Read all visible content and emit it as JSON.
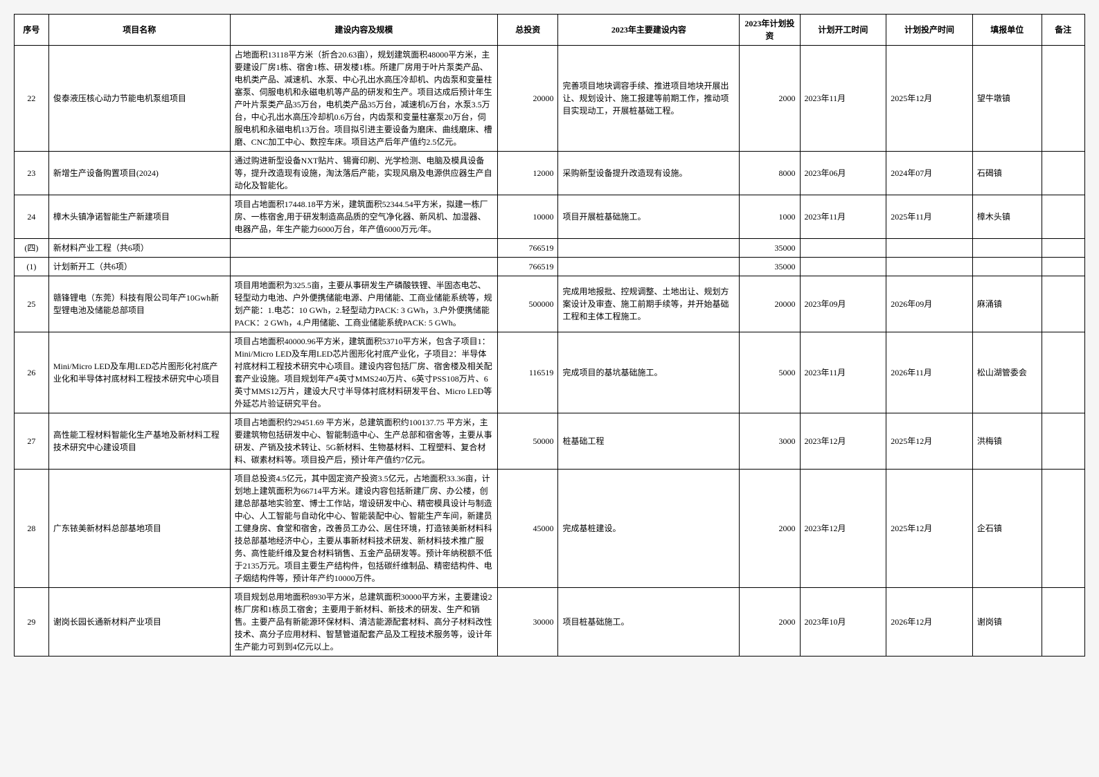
{
  "header": {
    "cols": [
      "序号",
      "项目名称",
      "建设内容及规模",
      "总投资",
      "2023年主要建设内容",
      "2023年计划投资",
      "计划开工时间",
      "计划投产时间",
      "填报单位",
      "备注"
    ]
  },
  "rows": [
    {
      "type": "data",
      "num": "22",
      "name": "俊泰液压核心动力节能电机泵组项目",
      "content": "占地面积13118平方米（折合20.63亩），规划建筑面积48000平方米，主要建设厂房1栋、宿舍1栋、研发楼1栋。所建厂房用于叶片泵类产品、电机类产品、减速机、水泵、中心孔出水高压冷却机、内齿泵和变量柱塞泵、伺服电机和永磁电机等产品的研发和生产。项目达成后预计年生产叶片泵类产品35万台，电机类产品35万台，减速机6万台，水泵3.5万台，中心孔出水高压冷却机0.6万台，内齿泵和变量柱塞泵20万台，伺服电机和永磁电机13万台。项目拟引进主要设备为磨床、曲线磨床、槽磨、CNC加工中心、数控车床。项目达产后年产值约2.5亿元。",
      "invest": "20000",
      "desc2023": "完善项目地块调容手续、推进项目地块开展出让、规划设计、施工报建等前期工作，推动项目实现动工，开展桩基础工程。",
      "plan2023": "2000",
      "start": "2023年11月",
      "end": "2025年12月",
      "unit": "望牛墩镇",
      "note": ""
    },
    {
      "type": "data",
      "num": "23",
      "name": "新增生产设备购置项目(2024)",
      "content": "通过购进新型设备NXT贴片、锡膏印刷、光学检测、电脑及模具设备等，提升改造现有设施，淘汰落后产能，实现风扇及电源供应器生产自动化及智能化。",
      "invest": "12000",
      "desc2023": "采购新型设备提升改造现有设施。",
      "plan2023": "8000",
      "start": "2023年06月",
      "end": "2024年07月",
      "unit": "石碣镇",
      "note": ""
    },
    {
      "type": "data",
      "num": "24",
      "name": "樟木头镇净诺智能生产新建项目",
      "content": "项目占地面积17448.18平方米，建筑面积52344.54平方米，拟建一栋厂房、一栋宿舍,用于研发制造高品质的空气净化器、新风机、加湿器、电器产品，年生产能力6000万台，年产值6000万元/年。",
      "invest": "10000",
      "desc2023": "项目开展桩基础施工。",
      "plan2023": "1000",
      "start": "2023年11月",
      "end": "2025年11月",
      "unit": "樟木头镇",
      "note": ""
    },
    {
      "type": "section",
      "num": "(四)",
      "name": "新材料产业工程（共6项）",
      "content": "",
      "invest": "766519",
      "desc2023": "",
      "plan2023": "35000",
      "start": "",
      "end": "",
      "unit": "",
      "note": ""
    },
    {
      "type": "section",
      "num": "(1)",
      "name": "计划新开工（共6项）",
      "content": "",
      "invest": "766519",
      "desc2023": "",
      "plan2023": "35000",
      "start": "",
      "end": "",
      "unit": "",
      "note": ""
    },
    {
      "type": "data",
      "num": "25",
      "name": "赣锋锂电（东莞）科技有限公司年产10Gwh新型锂电池及储能总部项目",
      "content": "项目用地面积为325.5亩，主要从事研发生产磷酸铁锂、半固态电芯、轻型动力电池、户外便携储能电源、户用储能、工商业储能系统等，规划产能：1.电芯：10 GWh，2.轻型动力PACK: 3 GWh，3.户外便携储能PACK：2 GWh，4.户用储能、工商业储能系统PACK: 5 GWh。",
      "invest": "500000",
      "desc2023": "完成用地报批、控规调整、土地出让、规划方案设计及审查、施工前期手续等，并开始基础工程和主体工程施工。",
      "plan2023": "20000",
      "start": "2023年09月",
      "end": "2026年09月",
      "unit": "麻涌镇",
      "note": ""
    },
    {
      "type": "data",
      "num": "26",
      "name": "Mini/Micro LED及车用LED芯片图形化衬底产业化和半导体衬底材料工程技术研究中心项目",
      "content": "项目占地面积40000.96平方米，建筑面积53710平方米，包含子项目1：Mini/Micro LED及车用LED芯片图形化衬底产业化，子项目2：半导体衬底材料工程技术研究中心项目。建设内容包括厂房、宿舍楼及相关配套产业设施。项目规划年产4英寸MMS240万片、6英寸PSS108万片、6英寸MMS12万片，建设大尺寸半导体衬底材料研发平台、Micro LED等外延芯片验证研究平台。",
      "invest": "116519",
      "desc2023": "完成项目的基坑基础施工。",
      "plan2023": "5000",
      "start": "2023年11月",
      "end": "2026年11月",
      "unit": "松山湖管委会",
      "note": ""
    },
    {
      "type": "data",
      "num": "27",
      "name": "高性能工程材料智能化生产基地及新材料工程技术研究中心建设项目",
      "content": "项目占地面积约29451.69 平方米，总建筑面积约100137.75 平方米，主要建筑物包括研发中心、智能制造中心、生产总部和宿舍等，主要从事研发、产销及技术转让、5G新材料、生物基材料、工程塑料、复合材料、碳素材料等。项目投产后，预计年产值约7亿元。",
      "invest": "50000",
      "desc2023": "桩基础工程",
      "plan2023": "3000",
      "start": "2023年12月",
      "end": "2025年12月",
      "unit": "洪梅镇",
      "note": ""
    },
    {
      "type": "data",
      "num": "28",
      "name": "广东铱美新材料总部基地项目",
      "content": "项目总投资4.5亿元，其中固定资产投资3.5亿元，占地面积33.36亩，计划地上建筑面积为66714平方米。建设内容包括新建厂房、办公楼，创建总部基地实验室、博士工作站，增设研发中心、精密模具设计与制造中心、人工智能与自动化中心、智能装配中心、智能生产车间，新建员工健身房、食堂和宿舍，改善员工办公、居住环境，打造铱美新材料科技总部基地经济中心，主要从事新材料技术研发、新材料技术推广服务、高性能纤维及复合材料销售、五金产品研发等。预计年纳税额不低于2135万元。项目主要生产结构件，包括碳纤维制品、精密结构件、电子烟结构件等，预计年产约10000万件。",
      "invest": "45000",
      "desc2023": "完成基桩建设。",
      "plan2023": "2000",
      "start": "2023年12月",
      "end": "2025年12月",
      "unit": "企石镇",
      "note": ""
    },
    {
      "type": "data",
      "num": "29",
      "name": "谢岗长园长通新材料产业项目",
      "content": "项目规划总用地面积8930平方米，总建筑面积30000平方米，主要建设2栋厂房和1栋员工宿舍；主要用于新材料、新技术的研发、生产和销售。主要产品有新能源环保材料、清洁能源配套材料、高分子材料改性技术、高分子应用材料、智慧管道配套产品及工程技术服务等，设计年生产能力可到到4亿元以上。",
      "invest": "30000",
      "desc2023": "项目桩基础施工。",
      "plan2023": "2000",
      "start": "2023年10月",
      "end": "2026年12月",
      "unit": "谢岗镇",
      "note": ""
    }
  ]
}
